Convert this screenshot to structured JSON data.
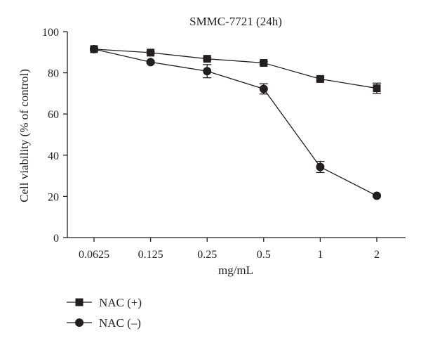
{
  "chart_data": {
    "type": "line",
    "title": "SMMC-7721 (24h)",
    "xlabel": "mg/mL",
    "ylabel": "Cell viability (% of control)",
    "categories": [
      "0.0625",
      "0.125",
      "0.25",
      "0.5",
      "1",
      "2"
    ],
    "ylim": [
      0,
      100
    ],
    "yticks": [
      0,
      20,
      40,
      60,
      80,
      100
    ],
    "grid": false,
    "legend_position": "bottom-left",
    "series": [
      {
        "name": "NAC (+)",
        "marker": "square",
        "values": [
          91.5,
          89.8,
          86.8,
          84.8,
          77.0,
          72.5
        ],
        "errors": [
          0.6,
          0.6,
          0.6,
          0.6,
          0.8,
          2.5
        ]
      },
      {
        "name": "NAC (–)",
        "marker": "circle",
        "values": [
          91.5,
          85.2,
          80.8,
          72.2,
          34.3,
          20.3
        ],
        "errors": [
          0.6,
          0.6,
          3.2,
          2.5,
          2.7,
          0.5
        ]
      }
    ],
    "colors": {
      "ink": "#231f20",
      "background": "#ffffff"
    }
  }
}
